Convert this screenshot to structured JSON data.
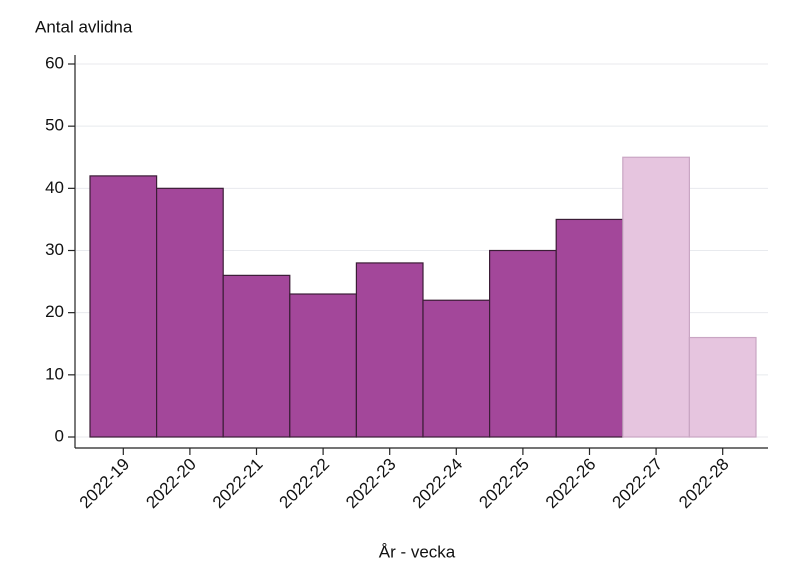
{
  "chart_data": {
    "type": "bar",
    "ylabel": "Antal avlidna",
    "xlabel": "År - vecka",
    "categories": [
      "2022-19",
      "2022-20",
      "2022-21",
      "2022-22",
      "2022-23",
      "2022-24",
      "2022-25",
      "2022-26",
      "2022-27",
      "2022-28"
    ],
    "values": [
      42,
      40,
      26,
      23,
      28,
      22,
      30,
      35,
      45,
      16
    ],
    "colors": [
      "#a3479a",
      "#a3479a",
      "#a3479a",
      "#a3479a",
      "#a3479a",
      "#a3479a",
      "#a3479a",
      "#a3479a",
      "#e6c5df",
      "#e6c5df"
    ],
    "ylim": [
      0,
      60
    ],
    "yticks": [
      0,
      10,
      20,
      30,
      40,
      50,
      60
    ],
    "grid": true
  }
}
